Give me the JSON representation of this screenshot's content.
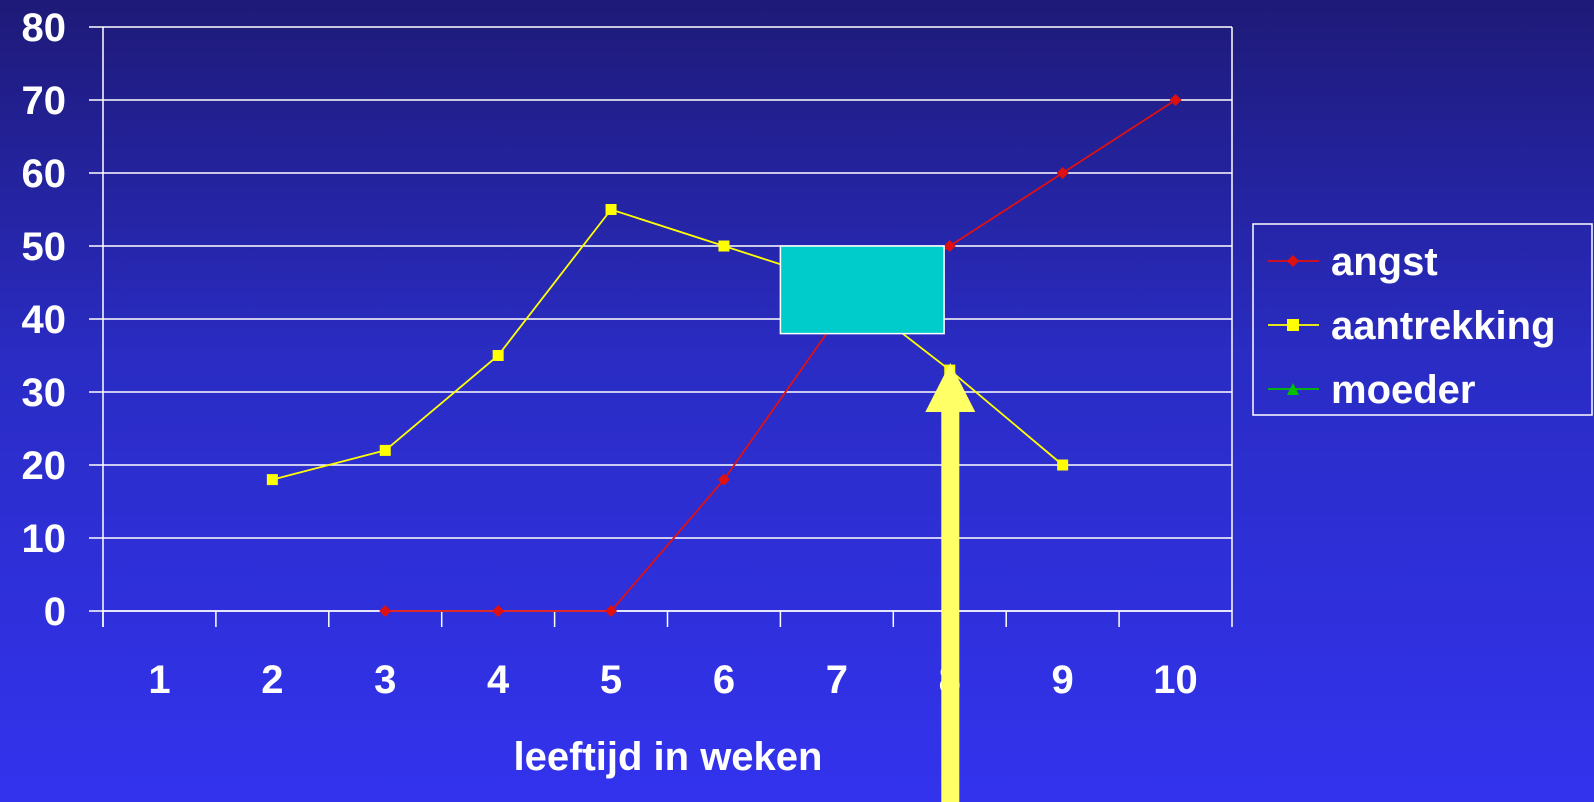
{
  "chart_data": {
    "type": "line",
    "title": "",
    "xlabel": "leeftijd in weken",
    "ylabel": "",
    "categories": [
      "1",
      "2",
      "3",
      "4",
      "5",
      "6",
      "7",
      "8",
      "9",
      "10"
    ],
    "ylim": [
      0,
      80
    ],
    "yticks": [
      0,
      10,
      20,
      30,
      40,
      50,
      60,
      70,
      80
    ],
    "grid": true,
    "legend_position": "right",
    "series": [
      {
        "name": "angst",
        "color": "#e01010",
        "marker": "diamond",
        "values": [
          null,
          null,
          0,
          0,
          0,
          18,
          40,
          50,
          60,
          70
        ]
      },
      {
        "name": "aantrekking",
        "color": "#ffff00",
        "marker": "square",
        "values": [
          null,
          18,
          22,
          35,
          55,
          50,
          45,
          33,
          20,
          null
        ]
      },
      {
        "name": "moeder",
        "color": "#00c000",
        "marker": "triangle",
        "values": [
          null,
          null,
          null,
          null,
          null,
          null,
          null,
          null,
          null,
          null
        ]
      }
    ],
    "annotations": [
      {
        "type": "highlight-box",
        "color": "#00cccc",
        "x_range": [
          6.5,
          7.95
        ],
        "y_range": [
          38,
          50
        ]
      },
      {
        "type": "arrow",
        "color": "#ffff66",
        "x": 7.5,
        "direction": "up"
      }
    ]
  },
  "colors": {
    "axis": "#ffffff",
    "grid": "#ffffff",
    "text": "#ffffff"
  }
}
